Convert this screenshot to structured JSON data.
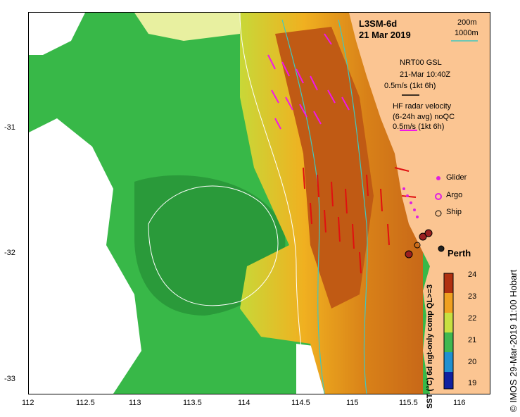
{
  "map": {
    "title": "L3SM-6d",
    "date": "21 Mar 2019",
    "scale_200": "200m",
    "scale_1000": "1000m",
    "gsl_title": "NRT00 GSL",
    "gsl_time": "21-Mar 10:40Z",
    "gsl_scale": "0.5m/s (1kt 6h)",
    "hf_title": "HF radar velocity",
    "hf_sub": "(6-24h avg) noQC",
    "hf_scale": "0.5m/s (1kt 6h)",
    "legend_glider": "Glider",
    "legend_argo": "Argo",
    "legend_ship": "Ship",
    "place": "Perth",
    "credit": "© IMOS 29-Mar-2019 11:00 Hobart",
    "colorbar_title": "SST (°C) 6d ngt-only comp QL>=3",
    "colorbar_ticks": [
      "24",
      "23",
      "22",
      "21",
      "20",
      "19"
    ],
    "x_ticks": [
      "112",
      "112.5",
      "113",
      "113.5",
      "114",
      "114.5",
      "115",
      "115.5",
      "116"
    ],
    "y_ticks": [
      "-31",
      "-32",
      "-33"
    ],
    "colors": {
      "land": "#fbc592",
      "current_arrow": "#e01010",
      "hf_arrow": "#f018e8",
      "isobath_200": "#ffffff",
      "isobath_1000": "#40c8c0"
    }
  }
}
